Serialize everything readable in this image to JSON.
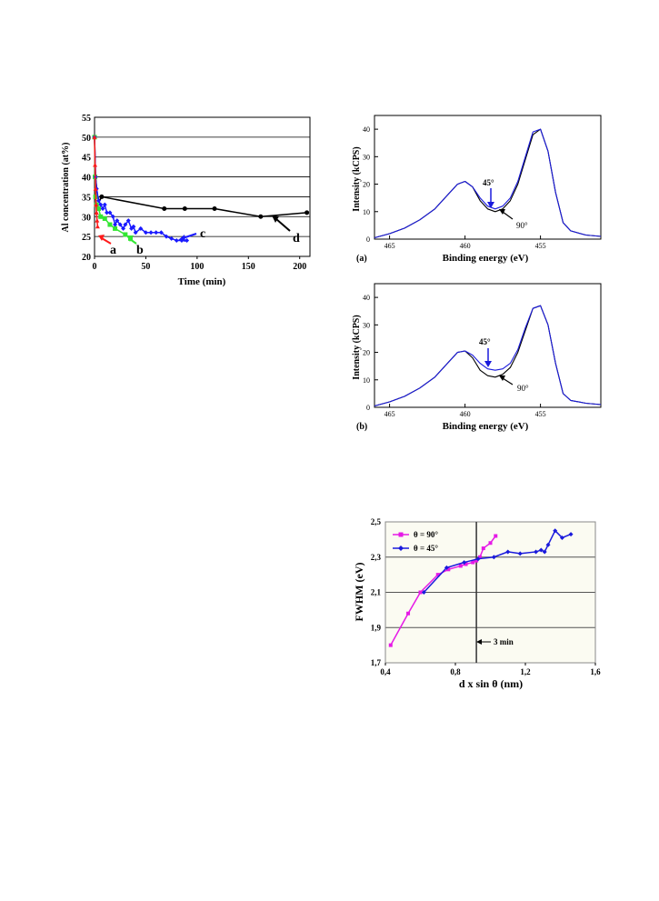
{
  "chart_data": [
    {
      "type": "line",
      "xlabel": "Time (min)",
      "ylabel": "Al concentration (at%)",
      "xlim": [
        0,
        210
      ],
      "ylim": [
        20,
        55
      ],
      "xticks": [
        "0",
        "50",
        "100",
        "150",
        "200"
      ],
      "yticks": [
        "20",
        "25",
        "30",
        "35",
        "40",
        "45",
        "50",
        "55"
      ],
      "grid": "horizontal",
      "colors": {
        "a": "#ff1a1a",
        "b": "#33e633",
        "c": "#1a1aff",
        "d": "#000000"
      },
      "series": [
        {
          "name": "a",
          "x": [
            0,
            0.5,
            1,
            1.5,
            2,
            2.5,
            3
          ],
          "y": [
            50,
            43,
            37,
            33,
            31,
            29,
            27.5
          ]
        },
        {
          "name": "b",
          "x": [
            0,
            0.5,
            1,
            2,
            4,
            6,
            10,
            15,
            20,
            30,
            35
          ],
          "y": [
            50,
            40,
            35,
            33,
            32,
            30,
            29.5,
            28,
            27,
            25.5,
            24.5
          ]
        },
        {
          "name": "c",
          "x": [
            0,
            1,
            2,
            4,
            6,
            8,
            10,
            12,
            15,
            18,
            20,
            22,
            25,
            28,
            30,
            33,
            36,
            38,
            40,
            45,
            50,
            55,
            60,
            65,
            70,
            75,
            80,
            85,
            90
          ],
          "y": [
            50,
            40,
            37,
            34,
            33,
            32,
            33,
            31,
            31,
            30,
            28,
            29,
            28,
            27,
            28,
            29,
            27,
            27.5,
            26,
            27,
            26,
            26,
            26,
            26,
            25,
            24.5,
            24,
            24,
            24
          ]
        },
        {
          "name": "d",
          "x": [
            0,
            1,
            3,
            5,
            7,
            68,
            88,
            117,
            162,
            207
          ],
          "y": [
            50,
            40,
            35,
            34,
            35,
            32,
            32,
            32,
            30,
            31
          ]
        }
      ],
      "annotations": [
        "a",
        "b",
        "c",
        "d"
      ]
    },
    {
      "type": "line",
      "panel_label": "(a)",
      "xlabel": "Binding energy (eV)",
      "ylabel": "Intensity (kCPS)",
      "xlim": [
        466,
        451
      ],
      "ylim": [
        0,
        45
      ],
      "xticks": [
        "465",
        "460",
        "455"
      ],
      "yticks": [
        "0",
        "10",
        "20",
        "30",
        "40"
      ],
      "series": [
        {
          "name": "45°",
          "x": [
            466,
            465,
            464,
            463,
            462,
            461,
            460.5,
            460,
            459.5,
            459,
            458.5,
            458,
            457.5,
            457,
            456.5,
            456,
            455.5,
            455,
            454.5,
            454,
            453.5,
            453,
            452,
            451
          ],
          "y": [
            0.5,
            2,
            4,
            7,
            11,
            17,
            20,
            21,
            19,
            15,
            12,
            11,
            12,
            15,
            21,
            30,
            39,
            40,
            32,
            17,
            6,
            3,
            1.5,
            1
          ]
        },
        {
          "name": "90°",
          "x": [
            466,
            465,
            464,
            463,
            462,
            461,
            460.5,
            460,
            459.5,
            459,
            458.5,
            458,
            457.5,
            457,
            456.5,
            456,
            455.5,
            455,
            454.5,
            454,
            453.5,
            453,
            452,
            451
          ],
          "y": [
            0.5,
            2,
            4,
            7,
            11,
            17,
            20,
            21,
            19,
            14,
            11,
            10,
            11,
            14,
            20,
            29,
            38,
            40,
            32,
            17,
            6,
            3,
            1.5,
            1
          ]
        }
      ],
      "annotations": [
        "45°",
        "90°"
      ],
      "colors": {
        "45°": "#1a1adc",
        "90°": "#000000"
      }
    },
    {
      "type": "line",
      "panel_label": "(b)",
      "xlabel": "Binding energy (eV)",
      "ylabel": "Intensity (kCPS)",
      "xlim": [
        466,
        451
      ],
      "ylim": [
        0,
        45
      ],
      "xticks": [
        "465",
        "460",
        "455"
      ],
      "yticks": [
        "0",
        "10",
        "20",
        "30",
        "40"
      ],
      "series": [
        {
          "name": "45°",
          "x": [
            466,
            465,
            464,
            463,
            462,
            461,
            460.5,
            460,
            459.5,
            459,
            458.5,
            458,
            457.5,
            457,
            456.5,
            456,
            455.5,
            455,
            454.5,
            454,
            453.5,
            453,
            452,
            451
          ],
          "y": [
            0.5,
            2,
            4,
            7,
            11,
            17,
            20,
            20.5,
            19,
            16,
            14,
            13.5,
            14,
            16,
            21,
            29,
            36,
            37,
            30,
            16,
            5,
            2.5,
            1.5,
            1
          ]
        },
        {
          "name": "90°",
          "x": [
            466,
            465,
            464,
            463,
            462,
            461,
            460.5,
            460,
            459.5,
            459,
            458.5,
            458,
            457.5,
            457,
            456.5,
            456,
            455.5,
            455,
            454.5,
            454,
            453.5,
            453,
            452,
            451
          ],
          "y": [
            0.5,
            2,
            4,
            7,
            11,
            17,
            20,
            20.5,
            18,
            13.5,
            11.5,
            11,
            12,
            14.5,
            20,
            28,
            36,
            37,
            30,
            16,
            5,
            2.5,
            1.5,
            1
          ]
        }
      ],
      "annotations": [
        "45°",
        "90°"
      ],
      "colors": {
        "45°": "#1a1adc",
        "90°": "#000000"
      }
    },
    {
      "type": "line",
      "xlabel": "d x sin θ (nm)",
      "ylabel": "FWHM (eV)",
      "xlim": [
        0.4,
        1.6
      ],
      "ylim": [
        1.7,
        2.5
      ],
      "xticks": [
        "0,4",
        "0,8",
        "1,2",
        "1,6"
      ],
      "yticks": [
        "1,7",
        "1,9",
        "2,1",
        "2,3",
        "2,5"
      ],
      "grid": "horizontal",
      "legend": "top-left",
      "colors": {
        "θ = 90°": "#e61ae6",
        "θ = 45°": "#1a1adc"
      },
      "series": [
        {
          "name": "θ = 90°",
          "x": [
            0.43,
            0.53,
            0.6,
            0.7,
            0.76,
            0.83,
            0.86,
            0.9,
            0.92,
            0.94,
            0.96,
            1.0,
            1.03
          ],
          "y": [
            1.8,
            1.98,
            2.1,
            2.2,
            2.23,
            2.25,
            2.26,
            2.27,
            2.28,
            2.3,
            2.35,
            2.38,
            2.42
          ]
        },
        {
          "name": "θ = 45°",
          "x": [
            0.62,
            0.75,
            0.85,
            0.93,
            1.02,
            1.1,
            1.17,
            1.26,
            1.29,
            1.31,
            1.33,
            1.37,
            1.41,
            1.46
          ],
          "y": [
            2.1,
            2.24,
            2.27,
            2.29,
            2.3,
            2.33,
            2.32,
            2.33,
            2.34,
            2.33,
            2.37,
            2.45,
            2.41,
            2.43
          ]
        }
      ],
      "vline": {
        "x": 0.92,
        "label": "3 min"
      }
    }
  ]
}
